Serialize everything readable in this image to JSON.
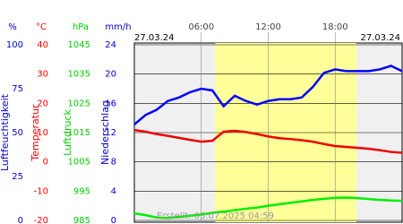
{
  "chart_data": {
    "type": "line",
    "date_left": "27.03.24",
    "date_right": "27.03.24",
    "footer": "Erstellt: 03.07.2025 04:59",
    "x": [
      0,
      1,
      2,
      3,
      4,
      5,
      6,
      7,
      8,
      9,
      10,
      11,
      12,
      13,
      14,
      15,
      16,
      17,
      18,
      19,
      20,
      21,
      22,
      23,
      24
    ],
    "xlim": [
      0,
      24
    ],
    "xticks": [
      {
        "value": 6,
        "label": "06:00"
      },
      {
        "value": 12,
        "label": "12:00"
      },
      {
        "value": 18,
        "label": "18:00"
      }
    ],
    "daylight": [
      7.25,
      19.9
    ],
    "grid": true,
    "axes": [
      {
        "unit": "%",
        "title": "Luftfeuchtigkeit",
        "color": "#0000cc",
        "ylim": [
          0,
          100
        ],
        "yticks": [
          0,
          25,
          50,
          75,
          100
        ]
      },
      {
        "unit": "°C",
        "title": "Temperatur",
        "color": "#ff0000",
        "ylim": [
          -20,
          40
        ],
        "yticks": [
          -20,
          -10,
          0,
          10,
          20,
          30,
          40
        ]
      },
      {
        "unit": "hPa",
        "title": "Luftdruck",
        "color": "#00cc00",
        "ylim": [
          985,
          1045
        ],
        "yticks": [
          985,
          995,
          1005,
          1015,
          1025,
          1035,
          1045
        ]
      },
      {
        "unit": "mm/h",
        "title": "Niederschlag",
        "color": "#0000cc",
        "ylim": [
          0,
          24
        ],
        "yticks": [
          0,
          4,
          8,
          12,
          16,
          20,
          24
        ]
      }
    ],
    "series": [
      {
        "axis": 0,
        "color": "#0000ff",
        "values": [
          54.6,
          60,
          63,
          68,
          70,
          73,
          75,
          74,
          65,
          71,
          68,
          66,
          68,
          69,
          69,
          70,
          76,
          84,
          86,
          85,
          85,
          85,
          86,
          88,
          85
        ]
      },
      {
        "axis": 1,
        "color": "#ee0000",
        "values": [
          10.9,
          10.3,
          9.5,
          8.9,
          8.2,
          7.5,
          6.9,
          7.2,
          10.3,
          10.6,
          10.2,
          9.5,
          8.7,
          8.1,
          7.8,
          7.4,
          6.9,
          6.1,
          5.4,
          5.1,
          4.8,
          4.5,
          4.0,
          3.4,
          3.1
        ]
      },
      {
        "axis": 2,
        "color": "#00ee00",
        "values": [
          987.4,
          986.8,
          986.0,
          985.8,
          986.2,
          986.6,
          987.0,
          987.6,
          988.0,
          988.5,
          989.0,
          989.4,
          990.0,
          990.5,
          991.0,
          991.5,
          992.0,
          992.4,
          992.7,
          992.8,
          992.6,
          992.3,
          992.0,
          991.8,
          991.7
        ]
      }
    ]
  }
}
